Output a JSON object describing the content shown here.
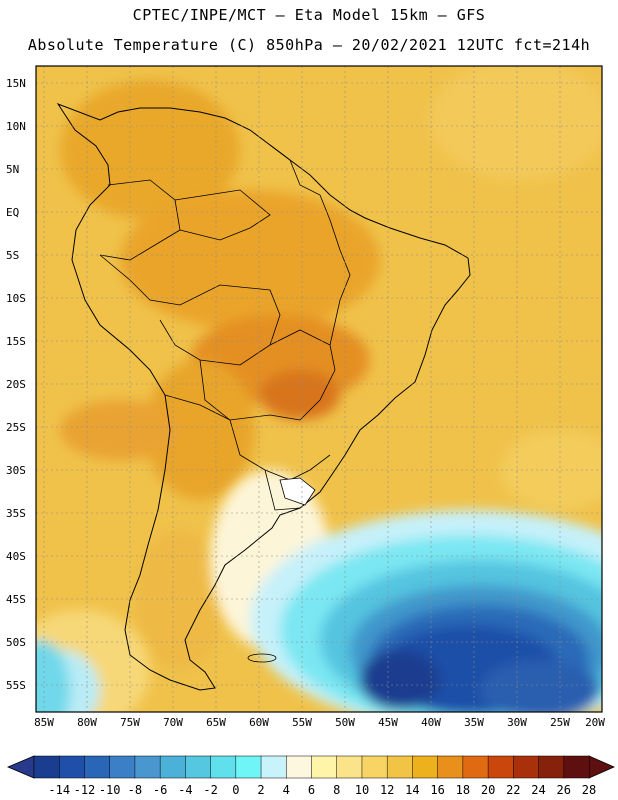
{
  "header": {
    "line1": "CPTEC/INPE/MCT –  Eta Model 15km – GFS",
    "line2": "Absolute Temperature (C) 850hPa – 20/02/2021 12UTC fct=214h"
  },
  "map": {
    "region": "South America",
    "lat_labels": [
      "15N",
      "10N",
      "5N",
      "EQ",
      "5S",
      "10S",
      "15S",
      "20S",
      "25S",
      "30S",
      "35S",
      "40S",
      "45S",
      "50S",
      "55S"
    ],
    "lon_labels": [
      "85W",
      "80W",
      "75W",
      "70W",
      "65W",
      "60W",
      "55W",
      "50W",
      "45W",
      "40W",
      "35W",
      "30W",
      "25W",
      "20W"
    ]
  },
  "colorbar": {
    "labels": [
      "-14",
      "-12",
      "-10",
      "-8",
      "-6",
      "-4",
      "-2",
      "0",
      "2",
      "4",
      "6",
      "8",
      "10",
      "12",
      "14",
      "16",
      "18",
      "20",
      "22",
      "24",
      "26",
      "28"
    ],
    "colors": [
      "#1a3d8f",
      "#1f4fa8",
      "#2a66b8",
      "#3b7fc6",
      "#4a97cf",
      "#4cb1d8",
      "#55c7e0",
      "#5fe0ec",
      "#6ff5f5",
      "#c9f3fb",
      "#fdf7e0",
      "#fff5a8",
      "#fbe38a",
      "#f8d465",
      "#f2c446",
      "#eeb11e",
      "#e88f1c",
      "#e06a12",
      "#c9470c",
      "#a8300a",
      "#86210b",
      "#5e0f10"
    ]
  }
}
